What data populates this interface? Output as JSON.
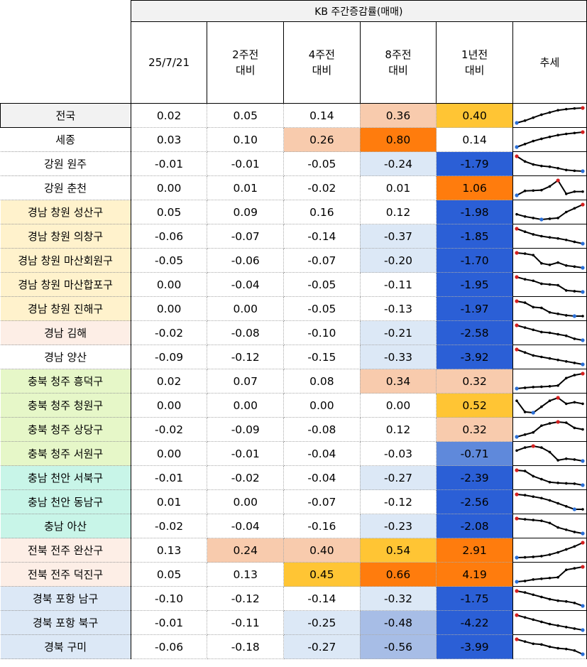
{
  "header": {
    "title": "KB 주간증감률(매매)",
    "columns": [
      {
        "line1": "25/7/21",
        "line2": ""
      },
      {
        "line1": "2주전",
        "line2": "대비"
      },
      {
        "line1": "4주전",
        "line2": "대비"
      },
      {
        "line1": "8주전",
        "line2": "대비"
      },
      {
        "line1": "1년전",
        "line2": "대비"
      },
      {
        "line1": "추세",
        "line2": ""
      }
    ]
  },
  "colors": {
    "peach": "#f8cbad",
    "orange": "#ff7c0d",
    "amber": "#ffc534",
    "blue_dark": "#2b5fd6",
    "blue_mid": "#5f89db",
    "blue_light": "#dce8f6",
    "blue_lavender": "#a7bde6"
  },
  "rows": [
    {
      "region": "전국",
      "region_bg": "#f2f2f2",
      "values": [
        "0.02",
        "0.05",
        "0.14",
        "0.36",
        "0.40"
      ],
      "bgs": [
        "",
        "",
        "",
        "#f8cbad",
        "#ffc534"
      ],
      "trend": [
        0.0,
        0.15,
        0.35,
        0.55,
        0.7,
        0.85,
        0.92,
        0.97,
        1.0
      ]
    },
    {
      "region": "세종",
      "region_bg": "#ffffff",
      "values": [
        "0.03",
        "0.10",
        "0.26",
        "0.80",
        "0.14"
      ],
      "bgs": [
        "",
        "",
        "#f8cbad",
        "#ff7c0d",
        ""
      ],
      "trend": [
        0.0,
        0.2,
        0.4,
        0.55,
        0.68,
        0.8,
        0.88,
        0.94,
        1.0
      ]
    },
    {
      "region": "강원 원주",
      "region_bg": "#ffffff",
      "values": [
        "-0.01",
        "-0.01",
        "-0.05",
        "-0.24",
        "-1.79"
      ],
      "bgs": [
        "",
        "",
        "",
        "#dce8f6",
        "#2b5fd6"
      ],
      "trend": [
        1.0,
        0.65,
        0.45,
        0.35,
        0.3,
        0.2,
        0.08,
        0.03,
        0.0
      ]
    },
    {
      "region": "강원 춘천",
      "region_bg": "#ffffff",
      "values": [
        "0.00",
        "0.01",
        "-0.02",
        "0.01",
        "1.06"
      ],
      "bgs": [
        "",
        "",
        "",
        "",
        "#ff7c0d"
      ],
      "trend": [
        0.0,
        0.3,
        0.32,
        0.35,
        0.6,
        1.0,
        0.1,
        0.25,
        0.25
      ]
    },
    {
      "region": "경남 창원 성산구",
      "region_bg": "#fff2cc",
      "values": [
        "0.05",
        "0.09",
        "0.16",
        "0.12",
        "-1.98"
      ],
      "bgs": [
        "",
        "",
        "",
        "",
        "#2b5fd6"
      ],
      "trend": [
        0.35,
        0.2,
        0.1,
        0.0,
        0.05,
        0.1,
        0.5,
        0.75,
        1.0
      ]
    },
    {
      "region": "경남 창원 의창구",
      "region_bg": "#fff2cc",
      "values": [
        "-0.06",
        "-0.07",
        "-0.14",
        "-0.37",
        "-1.85"
      ],
      "bgs": [
        "",
        "",
        "",
        "#dce8f6",
        "#2b5fd6"
      ],
      "trend": [
        1.0,
        0.8,
        0.62,
        0.5,
        0.42,
        0.35,
        0.25,
        0.12,
        0.0
      ]
    },
    {
      "region": "경남 창원 마산회원구",
      "region_bg": "#fff2cc",
      "values": [
        "-0.05",
        "-0.06",
        "-0.07",
        "-0.20",
        "-1.70"
      ],
      "bgs": [
        "",
        "",
        "",
        "#dce8f6",
        "#2b5fd6"
      ],
      "trend": [
        1.0,
        0.95,
        0.85,
        0.3,
        0.2,
        0.35,
        0.15,
        0.08,
        0.0
      ]
    },
    {
      "region": "경남 창원 마산합포구",
      "region_bg": "#fff2cc",
      "values": [
        "0.00",
        "-0.04",
        "-0.05",
        "-0.11",
        "-1.95"
      ],
      "bgs": [
        "",
        "",
        "",
        "",
        "#2b5fd6"
      ],
      "trend": [
        1.0,
        0.85,
        0.75,
        0.55,
        0.5,
        0.45,
        0.1,
        0.05,
        0.0
      ]
    },
    {
      "region": "경남 창원 진해구",
      "region_bg": "#fff2cc",
      "values": [
        "0.00",
        "0.00",
        "-0.05",
        "-0.13",
        "-1.97"
      ],
      "bgs": [
        "",
        "",
        "",
        "",
        "#2b5fd6"
      ],
      "trend": [
        1.0,
        0.9,
        0.6,
        0.55,
        0.25,
        0.15,
        0.05,
        0.0,
        0.0
      ]
    },
    {
      "region": "경남 김해",
      "region_bg": "#fdeee6",
      "values": [
        "-0.02",
        "-0.08",
        "-0.10",
        "-0.21",
        "-2.58"
      ],
      "bgs": [
        "",
        "",
        "",
        "#dce8f6",
        "#2b5fd6"
      ],
      "trend": [
        1.0,
        0.85,
        0.7,
        0.55,
        0.5,
        0.4,
        0.3,
        0.1,
        0.0
      ]
    },
    {
      "region": "경남 양산",
      "region_bg": "#ffffff",
      "values": [
        "-0.09",
        "-0.12",
        "-0.15",
        "-0.33",
        "-3.92"
      ],
      "bgs": [
        "",
        "",
        "",
        "#dce8f6",
        "#2b5fd6"
      ],
      "trend": [
        1.0,
        0.8,
        0.6,
        0.5,
        0.4,
        0.3,
        0.2,
        0.1,
        0.0
      ]
    },
    {
      "region": "충북 청주 흥덕구",
      "region_bg": "#e6f7c8",
      "values": [
        "0.02",
        "0.07",
        "0.08",
        "0.34",
        "0.32"
      ],
      "bgs": [
        "",
        "",
        "",
        "#f8cbad",
        "#f8cbad"
      ],
      "trend": [
        0.0,
        0.05,
        0.1,
        0.12,
        0.15,
        0.2,
        0.7,
        0.9,
        1.0
      ]
    },
    {
      "region": "충북 청주 청원구",
      "region_bg": "#e6f7c8",
      "values": [
        "0.00",
        "0.00",
        "0.00",
        "0.00",
        "0.52"
      ],
      "bgs": [
        "",
        "",
        "",
        "",
        "#ffc534"
      ],
      "trend": [
        0.8,
        0.05,
        0.0,
        0.4,
        0.8,
        1.0,
        0.6,
        0.7,
        0.6
      ]
    },
    {
      "region": "충북 청주 상당구",
      "region_bg": "#e6f7c8",
      "values": [
        "-0.02",
        "-0.09",
        "-0.08",
        "0.12",
        "0.32"
      ],
      "bgs": [
        "",
        "",
        "",
        "",
        "#f8cbad"
      ],
      "trend": [
        0.0,
        0.15,
        0.3,
        0.75,
        0.9,
        1.0,
        0.95,
        0.6,
        0.5
      ]
    },
    {
      "region": "충북 청주 서원구",
      "region_bg": "#e6f7c8",
      "values": [
        "0.00",
        "-0.01",
        "-0.04",
        "-0.03",
        "-0.71"
      ],
      "bgs": [
        "",
        "",
        "",
        "",
        "#5f89db"
      ],
      "trend": [
        0.7,
        0.9,
        1.0,
        0.9,
        0.6,
        0.05,
        0.15,
        0.1,
        0.0
      ]
    },
    {
      "region": "충남 천안 서북구",
      "region_bg": "#c8f5e8",
      "values": [
        "-0.01",
        "-0.02",
        "-0.04",
        "-0.27",
        "-2.39"
      ],
      "bgs": [
        "",
        "",
        "",
        "#dce8f6",
        "#2b5fd6"
      ],
      "trend": [
        1.0,
        0.95,
        0.6,
        0.4,
        0.2,
        0.15,
        0.12,
        0.1,
        0.0
      ]
    },
    {
      "region": "충남 천안 동남구",
      "region_bg": "#c8f5e8",
      "values": [
        "0.01",
        "0.00",
        "-0.07",
        "-0.12",
        "-2.56"
      ],
      "bgs": [
        "",
        "",
        "",
        "",
        "#2b5fd6"
      ],
      "trend": [
        1.0,
        0.95,
        0.85,
        0.75,
        0.6,
        0.4,
        0.2,
        0.0,
        0.0
      ]
    },
    {
      "region": "충남 아산",
      "region_bg": "#c8f5e8",
      "values": [
        "-0.02",
        "-0.04",
        "-0.16",
        "-0.23",
        "-2.08"
      ],
      "bgs": [
        "",
        "",
        "",
        "#dce8f6",
        "#2b5fd6"
      ],
      "trend": [
        1.0,
        0.95,
        0.9,
        0.85,
        0.7,
        0.4,
        0.25,
        0.1,
        0.0
      ]
    },
    {
      "region": "전북 전주 완산구",
      "region_bg": "#fdeee6",
      "values": [
        "0.13",
        "0.24",
        "0.40",
        "0.54",
        "2.91"
      ],
      "bgs": [
        "",
        "#f8cbad",
        "#f8cbad",
        "#ffc534",
        "#ff7c0d"
      ],
      "trend": [
        0.0,
        0.02,
        0.05,
        0.1,
        0.2,
        0.35,
        0.55,
        0.75,
        1.0
      ]
    },
    {
      "region": "전북 전주 덕진구",
      "region_bg": "#fdeee6",
      "values": [
        "0.05",
        "0.13",
        "0.45",
        "0.66",
        "4.19"
      ],
      "bgs": [
        "",
        "",
        "#ffc534",
        "#ff7c0d",
        "#ff7c0d"
      ],
      "trend": [
        0.0,
        0.05,
        0.15,
        0.2,
        0.25,
        0.3,
        0.8,
        0.9,
        1.0
      ]
    },
    {
      "region": "경북 포항 남구",
      "region_bg": "#dce8f6",
      "values": [
        "-0.10",
        "-0.12",
        "-0.14",
        "-0.32",
        "-1.75"
      ],
      "bgs": [
        "",
        "",
        "",
        "#dce8f6",
        "#2b5fd6"
      ],
      "trend": [
        1.0,
        0.9,
        0.75,
        0.6,
        0.45,
        0.35,
        0.3,
        0.2,
        0.0
      ]
    },
    {
      "region": "경북 포항 북구",
      "region_bg": "#dce8f6",
      "values": [
        "-0.01",
        "-0.11",
        "-0.25",
        "-0.48",
        "-4.22"
      ],
      "bgs": [
        "",
        "",
        "#dce8f6",
        "#a7bde6",
        "#2b5fd6"
      ],
      "trend": [
        1.0,
        0.85,
        0.7,
        0.55,
        0.4,
        0.3,
        0.2,
        0.1,
        0.0
      ]
    },
    {
      "region": "경북 구미",
      "region_bg": "#dce8f6",
      "values": [
        "-0.06",
        "-0.18",
        "-0.27",
        "-0.56",
        "-3.99"
      ],
      "bgs": [
        "",
        "",
        "#dce8f6",
        "#a7bde6",
        "#2b5fd6"
      ],
      "trend": [
        1.0,
        0.85,
        0.7,
        0.65,
        0.5,
        0.4,
        0.35,
        0.25,
        0.0
      ]
    }
  ]
}
